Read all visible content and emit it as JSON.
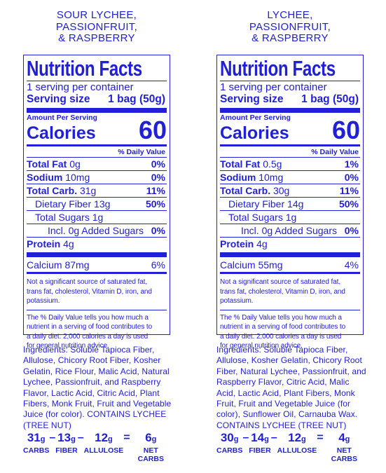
{
  "panels": [
    {
      "title_lines": [
        "SOUR LYCHEE,",
        "PASSIONFRUIT,",
        "& RASPBERRY"
      ],
      "facts": {
        "heading": "Nutrition Facts",
        "servings": "1 serving per container",
        "serving_size_label": "Serving size",
        "serving_size_value": "1 bag (50g)",
        "amount_per_serving": "Amount Per Serving",
        "calories_label": "Calories",
        "calories": 60,
        "daily_value_header": "% Daily Value",
        "rows": [
          {
            "label": "Total Fat",
            "amount": "0g",
            "dv": "0%"
          },
          {
            "label": "Sodium",
            "amount": "10mg",
            "dv": "0%"
          },
          {
            "label": "Total Carb.",
            "amount": "31g",
            "dv": "11%"
          },
          {
            "label": "Dietary Fiber",
            "amount": "13g",
            "dv": "50%"
          },
          {
            "label": "Total Sugars",
            "amount": "1g"
          },
          {
            "label": "Incl. 0g Added Sugars",
            "dv": "0%"
          },
          {
            "label": "Protein",
            "amount": "4g"
          },
          {
            "label": "Calcium",
            "amount": "87mg",
            "dv": "6%"
          }
        ],
        "footnote_1": [
          "Not a significant source of saturated fat,",
          "trans fat, cholesterol, Vitamin D, iron, and",
          "potassium."
        ],
        "footnote_2": [
          "The % Daily Value tells you how much a",
          "nutrient in a serving of food contributes to",
          "a daily diet. 2,000 calories a day is used",
          "for general nutrition advice."
        ]
      },
      "ingredients": [
        "Ingredients: Soluble Tapioca Fiber,",
        "Allulose, Chicory Root Fiber, Kosher",
        "Gelatin, Rice Flour, Malic Acid, Natural",
        "Lychee, Passionfruit, and Raspberry",
        "Flavor, Lactic Acid, Citric Acid, Plant",
        "Fibers, Monk Fruit, Fruit and Vegetable",
        "Juice (for color). CONTAINS LYCHEE",
        "(TREE NUT)"
      ],
      "net_carbs": {
        "items": [
          {
            "amount": 31,
            "unit": "g",
            "label": "CARBS"
          },
          {
            "amount": 13,
            "unit": "g",
            "label": "FIBER"
          },
          {
            "amount": 12,
            "unit": "g",
            "label": "ALLULOSE"
          },
          {
            "amount": 6,
            "unit": "g",
            "label": "NET CARBS"
          }
        ],
        "operators": [
          "–",
          "–",
          "="
        ]
      }
    },
    {
      "title_lines": [
        "LYCHEE,",
        "PASSIONFRUIT,",
        "& RASPBERRY"
      ],
      "facts": {
        "heading": "Nutrition Facts",
        "servings": "1 serving per container",
        "serving_size_label": "Serving size",
        "serving_size_value": "1 bag (50g)",
        "amount_per_serving": "Amount Per Serving",
        "calories_label": "Calories",
        "calories": 60,
        "daily_value_header": "% Daily Value",
        "rows": [
          {
            "label": "Total Fat",
            "amount": "0.5g",
            "dv": "1%"
          },
          {
            "label": "Sodium",
            "amount": "10mg",
            "dv": "0%"
          },
          {
            "label": "Total Carb.",
            "amount": "30g",
            "dv": "11%"
          },
          {
            "label": "Dietary Fiber",
            "amount": "14g",
            "dv": "50%"
          },
          {
            "label": "Total Sugars",
            "amount": "1g"
          },
          {
            "label": "Incl. 0g Added Sugars",
            "dv": "0%"
          },
          {
            "label": "Protein",
            "amount": "4g"
          },
          {
            "label": "Calcium",
            "amount": "55mg",
            "dv": "4%"
          }
        ],
        "footnote_1": [
          "Not a significant source of saturated fat,",
          "trans fat, cholesterol, Vitamin D, iron, and",
          "potassium."
        ],
        "footnote_2": [
          "The % Daily Value tells you how much a",
          "nutrient in a serving of food contributes to",
          "a daily diet. 2,000 calories a day is used",
          "for general nutrition advice."
        ]
      },
      "ingredients": [
        "Ingredients: Soluble Tapioca Fiber,",
        "Allulose, Kosher Gelatin, Chicory Root",
        "Fiber, Natural Lychee, Passionfruit, and",
        "Raspberry Flavor, Citric Acid, Malic",
        "Acid, Lactic Acid, Plant Fibers, Monk",
        "Fruit, Fruit and Vegetable Juice (for",
        "color), Sunflower Oil, Carnauba Wax.",
        "CONTAINS LYCHEE (TREE NUT)"
      ],
      "net_carbs": {
        "items": [
          {
            "amount": 30,
            "unit": "g",
            "label": "CARBS"
          },
          {
            "amount": 14,
            "unit": "g",
            "label": "FIBER"
          },
          {
            "amount": 12,
            "unit": "g",
            "label": "ALLULOSE"
          },
          {
            "amount": 4,
            "unit": "g",
            "label": "NET CARBS"
          }
        ],
        "operators": [
          "–",
          "–",
          "="
        ]
      }
    }
  ]
}
